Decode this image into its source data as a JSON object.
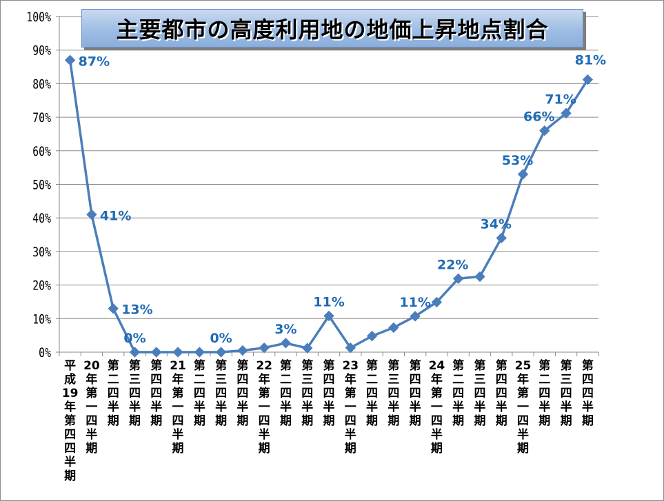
{
  "chart_data": {
    "type": "line",
    "title": "主要都市の高度利用地の地価上昇地点割合",
    "xlabel": "",
    "ylabel": "",
    "ylim": [
      0,
      100
    ],
    "yticks": [
      "0%",
      "10%",
      "20%",
      "30%",
      "40%",
      "50%",
      "60%",
      "70%",
      "80%",
      "90%",
      "100%"
    ],
    "grid": true,
    "legend": "none",
    "line_color": "#4a7ebb",
    "label_color": "#1f6bb5",
    "categories": [
      "平成19年第四四半期",
      "20年第一四半期",
      "第二四半期",
      "第三四半期",
      "第四四半期",
      "21年第一四半期",
      "第二四半期",
      "第三四半期",
      "第四四半期",
      "22年第一四半期",
      "第二四半期",
      "第三四半期",
      "第四四半期",
      "23年第一四半期",
      "第二四半期",
      "第三四半期",
      "第四四半期",
      "24年第一四半期",
      "第二四半期",
      "第三四半期",
      "第四四半期",
      "25年第一四半期",
      "第二四半期",
      "第三四半期",
      "第四四半期"
    ],
    "series": [
      {
        "values": [
          87,
          41,
          13,
          0,
          0,
          0,
          0,
          0,
          0.5,
          1.3,
          2.7,
          1.2,
          10.8,
          1.3,
          4.8,
          7.3,
          10.7,
          14.9,
          21.9,
          22.5,
          34,
          53,
          66,
          71.2,
          81.2
        ]
      }
    ],
    "data_labels": [
      {
        "index": 0,
        "text": "87%"
      },
      {
        "index": 1,
        "text": "41%"
      },
      {
        "index": 2,
        "text": "13%"
      },
      {
        "index": 3,
        "text": "0%"
      },
      {
        "index": 7,
        "text": "0%"
      },
      {
        "index": 10,
        "text": "3%"
      },
      {
        "index": 12,
        "text": "11%"
      },
      {
        "index": 16,
        "text": "11%"
      },
      {
        "index": 18,
        "text": "22%"
      },
      {
        "index": 20,
        "text": "34%"
      },
      {
        "index": 21,
        "text": "53%"
      },
      {
        "index": 22,
        "text": "66%"
      },
      {
        "index": 23,
        "text": "71%"
      },
      {
        "index": 24,
        "text": "81%"
      }
    ]
  }
}
